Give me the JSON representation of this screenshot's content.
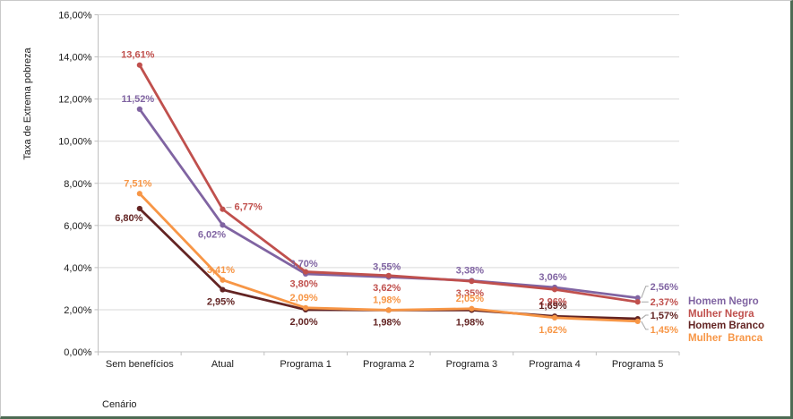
{
  "frame": {
    "background": "#ffffff",
    "border_top_left_color": "#c9c9c9",
    "border_bottom_right_color": "#4d6b53"
  },
  "chart_data": {
    "type": "line",
    "title": "",
    "xlabel": "Cenário",
    "ylabel": "Taxa de Extrema pobreza",
    "categories": [
      "Sem benefícios",
      "Atual",
      "Programa 1",
      "Programa 2",
      "Programa 3",
      "Programa 4",
      "Programa 5"
    ],
    "y_axis": {
      "min": 0,
      "max": 16,
      "step": 2,
      "tick_labels": [
        "0,00%",
        "2,00%",
        "4,00%",
        "6,00%",
        "8,00%",
        "10,00%",
        "12,00%",
        "14,00%",
        "16,00%"
      ]
    },
    "grid": true,
    "legend_position": "right",
    "gridline_color": "#d9d9d9",
    "axis_color": "#bfbfbf",
    "leader_line_color": "#a6a6a6",
    "series": [
      {
        "name": "Homem Negro",
        "color": "#8064A2",
        "values": [
          11.52,
          6.02,
          3.7,
          3.55,
          3.38,
          3.06,
          2.56
        ],
        "labels": [
          "11,52%",
          "6,02%",
          "3,70%",
          "3,55%",
          "3,38%",
          "3,06%",
          "2,56%"
        ]
      },
      {
        "name": "Mulher Negra",
        "color": "#C0504D",
        "values": [
          13.61,
          6.77,
          3.8,
          3.62,
          3.35,
          2.96,
          2.37
        ],
        "labels": [
          "13,61%",
          "6,77%",
          "3,80%",
          "3,62%",
          "3,35%",
          "2,96%",
          "2,37%"
        ]
      },
      {
        "name": "Homem Branco",
        "color": "#632423",
        "values": [
          6.8,
          2.95,
          2.0,
          1.98,
          1.98,
          1.69,
          1.57
        ],
        "labels": [
          "6,80%",
          "2,95%",
          "2,00%",
          "1,98%",
          "1,98%",
          "1,69%",
          "1,57%"
        ]
      },
      {
        "name": "Mulher  Branca",
        "color": "#F79646",
        "values": [
          7.51,
          3.41,
          2.09,
          1.98,
          2.05,
          1.62,
          1.45
        ],
        "labels": [
          "7,51%",
          "3,41%",
          "2,09%",
          "1,98%",
          "2,05%",
          "1,62%",
          "1,45%"
        ]
      }
    ]
  }
}
